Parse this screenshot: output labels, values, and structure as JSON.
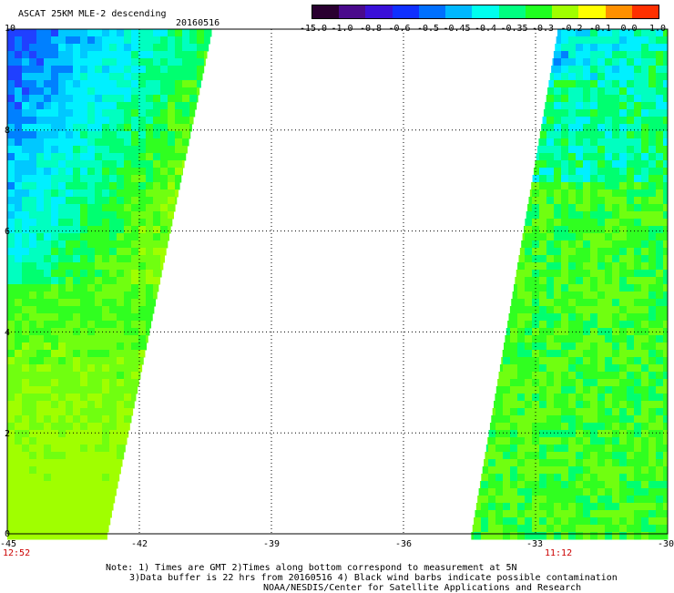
{
  "header": {
    "title": "ASCAT 25KM MLE-2 descending",
    "date": "20160516"
  },
  "colorbar": {
    "labels": [
      "-15.0",
      "-1.0",
      "-0.8",
      "-0.6",
      "-0.5",
      "-0.45",
      "-0.4",
      "-0.35",
      "-0.3",
      "-0.2",
      "-0.1",
      "0.0",
      "1.0"
    ],
    "colors": [
      "#2a0030",
      "#4a0a8c",
      "#3a10d8",
      "#1030ff",
      "#0070ff",
      "#00b8ff",
      "#00ffee",
      "#00ff80",
      "#20ff20",
      "#a0ff00",
      "#ffff00",
      "#ff9000",
      "#ff3000"
    ]
  },
  "map": {
    "lon_ticks": [
      "-45",
      "-42",
      "-39",
      "-36",
      "-33",
      "-30"
    ],
    "lat_ticks": [
      "0",
      "2",
      "4",
      "6",
      "8",
      "10"
    ],
    "lon_range": [
      -45,
      -30
    ],
    "lat_range": [
      0,
      10
    ],
    "swath_times": {
      "left": "12:52",
      "right": "11:12"
    }
  },
  "notes": {
    "line1": "Note: 1) Times are GMT 2)Times along bottom correspond to measurement at 5N",
    "line2": "3)Data buffer is 22 hrs from 20160516 4) Black wind barbs indicate possible contamination",
    "line3": "NOAA/NESDIS/Center for Satellite Applications and Research"
  }
}
